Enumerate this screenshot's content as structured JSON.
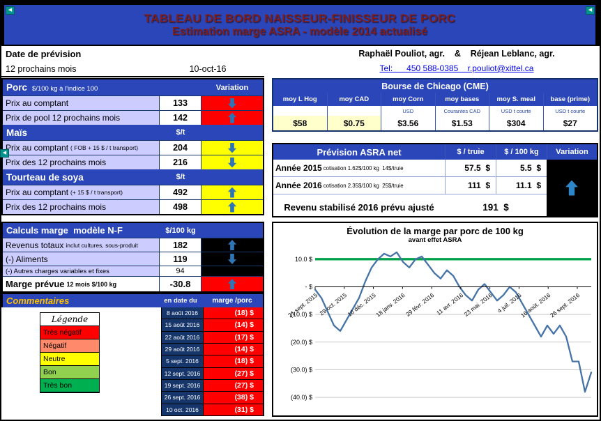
{
  "title": {
    "line1": "TABLEAU DE BORD NAISSEUR-FINISSEUR DE PORC",
    "line2": "Estimation marge ASRA - modèle 2014 actualisé"
  },
  "header": {
    "date_label": "Date de prévision",
    "period_label": "12 prochains mois",
    "date_value": "10-oct-16",
    "authors": "Raphaël Pouliot, agr.    &    Réjean Leblanc, agr.",
    "contact": "Tel:      450 588-0385    r.pouliot@xittel.ca"
  },
  "porc": {
    "title": "Porc",
    "unit": "$/100 kg à l'indice 100",
    "variation_label": "Variation",
    "rows": [
      {
        "label": "Prix au comptant",
        "note": "",
        "value": "133",
        "variation": "red",
        "arrow": "down"
      },
      {
        "label": "Prix de pool 12 prochains mois",
        "note": "",
        "value": "142",
        "variation": "red",
        "arrow": "up"
      }
    ]
  },
  "mais": {
    "title": "Maïs",
    "unit": "$/t",
    "rows": [
      {
        "label": "Prix au comptant",
        "note": "( FOB + 15 $ / t transport)",
        "value": "204",
        "variation": "yellow",
        "arrow": "down"
      },
      {
        "label": "Prix des 12 prochains mois",
        "note": "",
        "value": "216",
        "variation": "yellow",
        "arrow": "down"
      }
    ]
  },
  "soya": {
    "title": "Tourteau de soya",
    "unit": "$/t",
    "rows": [
      {
        "label": "Prix au comptant",
        "note": "(+ 15 $ / t  transport)",
        "value": "492",
        "variation": "yellow",
        "arrow": "up"
      },
      {
        "label": "Prix des 12 prochains mois",
        "note": "",
        "value": "498",
        "variation": "yellow",
        "arrow": "up"
      }
    ]
  },
  "calculs": {
    "title": "Calculs marge  modèle N-F",
    "unit": "$/100 kg",
    "rows": [
      {
        "label": "Revenus totaux",
        "note": "inclut cultures, sous-produit",
        "value": "182",
        "variation": "black",
        "arrow": "up"
      },
      {
        "label": "(-) Aliments",
        "note": "",
        "value": "119",
        "variation": "black",
        "arrow": "down"
      },
      {
        "label": "(-) Autres charges variables et fixes",
        "note": "",
        "value": "94",
        "variation": "black",
        "arrow": "",
        "small": true
      }
    ],
    "marge_label": "Marge prévue",
    "marge_note": "12 mois $/100 kg",
    "marge_value": "-30.8"
  },
  "commentaires": {
    "title": "Commentaires",
    "col_date": "en date du",
    "col_marge": "marge /porc",
    "legend_title": "Légende",
    "legend": [
      {
        "label": "Très négatif",
        "color": "#FF0000"
      },
      {
        "label": "Négatif",
        "color": "#FF8A6B"
      },
      {
        "label": "Neutre",
        "color": "#FFFF00"
      },
      {
        "label": "Bon",
        "color": "#92D050"
      },
      {
        "label": "Très bon",
        "color": "#00B050"
      }
    ],
    "rows": [
      {
        "date": "8 août 2016",
        "marge": "(18) $"
      },
      {
        "date": "15 août 2016",
        "marge": "(14) $"
      },
      {
        "date": "22 août 2016",
        "marge": "(17) $"
      },
      {
        "date": "29 août 2016",
        "marge": "(14) $"
      },
      {
        "date": "5 sept. 2016",
        "marge": "(18) $"
      },
      {
        "date": "12 sept. 2016",
        "marge": "(27) $"
      },
      {
        "date": "19 sept. 2016",
        "marge": "(27) $"
      },
      {
        "date": "26 sept. 2016",
        "marge": "(38) $"
      },
      {
        "date": "10 oct. 2016",
        "marge": "(31) $"
      }
    ]
  },
  "bourse": {
    "title": "Bourse de Chicago (CME)",
    "columns": [
      {
        "header": "moy L Hog",
        "sub": "",
        "value": "$58",
        "highlight": true
      },
      {
        "header": "moy CAD",
        "sub": "",
        "value": "$0.75",
        "highlight": true
      },
      {
        "header": "moy Corn",
        "sub": "USD",
        "value": "$3.56",
        "highlight": false
      },
      {
        "header": "moy bases",
        "sub": "Courantes CAD",
        "value": "$1.53",
        "highlight": false
      },
      {
        "header": "moy S. meal",
        "sub": "USD t courte",
        "value": "$304",
        "highlight": false
      },
      {
        "header": "base (prime)",
        "sub": "USD t courte",
        "value": "$27",
        "highlight": false
      }
    ]
  },
  "asra": {
    "title": "Prévision ASRA net",
    "col_truie": "$ / truie",
    "col_kg": "$ / 100 kg",
    "col_var": "Variation",
    "rows": [
      {
        "label": "Année 2015",
        "note": "cotisation 1.62$/100 kg  14$/truie",
        "truie": "57.5  $",
        "kg": "5.5  $"
      },
      {
        "label": "Année 2016",
        "note": "cotisation 2.35$/100 kg  25$/truie",
        "truie": "111  $",
        "kg": "11.1  $"
      }
    ],
    "revenu_label": "Revenu stabilisé 2016 prévu ajusté",
    "revenu_value": "191  $"
  },
  "chart_data": {
    "type": "line",
    "title": "Évolution de la marge par porc de 100 kg",
    "subtitle": "avant effet ASRA",
    "x_ticks": [
      "21 sept. 2015",
      "29 oct. 2015",
      "16 déc. 2015",
      "18 janv. 2016",
      "29 févr. 2016",
      "11 avr. 2016",
      "23 mai. 2016",
      "4 juil. 2016",
      "16 août. 2016",
      "26 sept. 2016"
    ],
    "yticks": [
      {
        "value": 10,
        "label": "10.0  $"
      },
      {
        "value": 0,
        "label": "-    $"
      },
      {
        "value": -10,
        "label": "(10.0) $"
      },
      {
        "value": -20,
        "label": "(20.0) $"
      },
      {
        "value": -30,
        "label": "(30.0) $"
      },
      {
        "value": -40,
        "label": "(40.0) $"
      }
    ],
    "ylim": [
      -43,
      14
    ],
    "grid": true,
    "legend_position": "none",
    "baseline": {
      "value": 10,
      "color": "#00A14B"
    },
    "series": [
      {
        "name": "marge par porc avant ASRA",
        "color": "#4572A7",
        "values": [
          -1,
          -4,
          -9,
          -14,
          -16,
          -12,
          -8,
          -4,
          2,
          7,
          10,
          12,
          11,
          12.5,
          9,
          7,
          10,
          11,
          8,
          5,
          3,
          6,
          4,
          0,
          -3,
          -5,
          -1,
          1,
          -2,
          -5,
          -3,
          0,
          -2,
          -6,
          -10,
          -14,
          -18,
          -14,
          -17,
          -14,
          -18,
          -27,
          -27,
          -38,
          -31
        ]
      }
    ]
  },
  "icons": {
    "nav_arrow": "◀"
  }
}
